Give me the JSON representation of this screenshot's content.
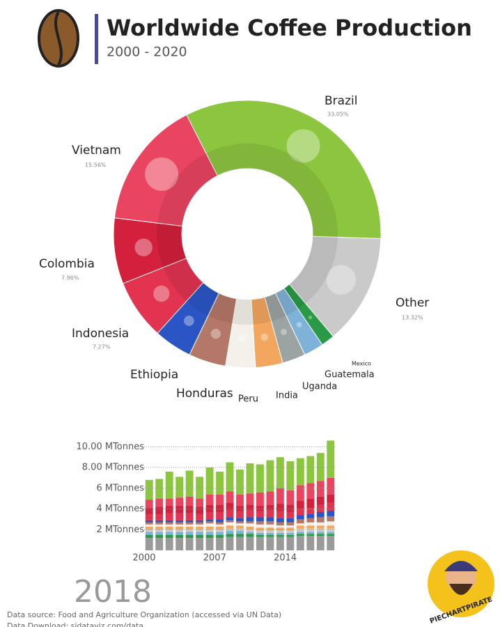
{
  "chart_data": [
    {
      "type": "pie",
      "title": "Worldwide Coffee Production",
      "subtitle": "2000 - 2020",
      "categories": [
        "Brazil",
        "Other",
        "Mexico",
        "Guatemala",
        "Uganda",
        "India",
        "Peru",
        "Honduras",
        "Ethiopia",
        "Indonesia",
        "Colombia",
        "Vietnam"
      ],
      "values": [
        33.05,
        13.32,
        1.64,
        2.4,
        2.8,
        3.3,
        3.6,
        4.5,
        4.6,
        7.27,
        7.96,
        15.56
      ],
      "value_labels": [
        "33.05%",
        "13.32%",
        null,
        null,
        null,
        null,
        null,
        null,
        null,
        "7.27%",
        "7.96%",
        "15.56%"
      ],
      "colors": [
        "#8cc63f",
        "#cacaca",
        "#2a9a46",
        "#7fb2d8",
        "#9ca3a3",
        "#f2a65e",
        "#f3f1ea",
        "#b37868",
        "#2b55c4",
        "#e23450",
        "#d3203c",
        "#ea4560"
      ]
    },
    {
      "type": "bar",
      "stacked": true,
      "annotation": "2018",
      "categories": [
        "2000",
        null,
        null,
        null,
        null,
        null,
        null,
        "2007",
        null,
        null,
        null,
        null,
        null,
        null,
        "2014",
        null,
        null,
        null,
        null
      ],
      "series": [
        {
          "color": "#9a9a9a",
          "values": [
            1.2,
            1.2,
            1.2,
            1.2,
            1.2,
            1.2,
            1.2,
            1.2,
            1.3,
            1.3,
            1.3,
            1.3,
            1.3,
            1.3,
            1.3,
            1.4,
            1.4,
            1.4,
            1.4
          ]
        },
        {
          "color": "#2a9a46",
          "values": [
            0.3,
            0.3,
            0.3,
            0.3,
            0.3,
            0.3,
            0.3,
            0.3,
            0.3,
            0.3,
            0.3,
            0.2,
            0.2,
            0.2,
            0.2,
            0.2,
            0.2,
            0.2,
            0.2
          ]
        },
        {
          "color": "#7fb2d8",
          "values": [
            0.3,
            0.3,
            0.3,
            0.3,
            0.3,
            0.3,
            0.3,
            0.3,
            0.3,
            0.3,
            0.2,
            0.2,
            0.2,
            0.2,
            0.2,
            0.2,
            0.2,
            0.2,
            0.2
          ]
        },
        {
          "color": "#c9cdcd",
          "values": [
            0.2,
            0.2,
            0.2,
            0.2,
            0.2,
            0.2,
            0.2,
            0.2,
            0.2,
            0.2,
            0.2,
            0.2,
            0.2,
            0.2,
            0.2,
            0.3,
            0.3,
            0.3,
            0.3
          ]
        },
        {
          "color": "#f2a65e",
          "values": [
            0.3,
            0.3,
            0.3,
            0.3,
            0.3,
            0.3,
            0.3,
            0.3,
            0.3,
            0.3,
            0.3,
            0.3,
            0.3,
            0.3,
            0.3,
            0.3,
            0.3,
            0.3,
            0.3
          ]
        },
        {
          "color": "#f3f1ea",
          "values": [
            0.2,
            0.2,
            0.2,
            0.2,
            0.2,
            0.2,
            0.3,
            0.2,
            0.3,
            0.2,
            0.3,
            0.3,
            0.3,
            0.2,
            0.2,
            0.2,
            0.3,
            0.3,
            0.4
          ]
        },
        {
          "color": "#b37868",
          "values": [
            0.2,
            0.2,
            0.2,
            0.2,
            0.2,
            0.2,
            0.2,
            0.2,
            0.2,
            0.2,
            0.2,
            0.3,
            0.3,
            0.3,
            0.3,
            0.4,
            0.4,
            0.5,
            0.5
          ]
        },
        {
          "color": "#2b55c4",
          "values": [
            0.2,
            0.2,
            0.2,
            0.2,
            0.2,
            0.2,
            0.2,
            0.3,
            0.3,
            0.3,
            0.4,
            0.4,
            0.4,
            0.4,
            0.4,
            0.4,
            0.4,
            0.5,
            0.5
          ]
        },
        {
          "color": "#e23450",
          "values": [
            0.6,
            0.6,
            0.7,
            0.7,
            0.7,
            0.6,
            0.7,
            0.7,
            0.7,
            0.7,
            0.7,
            0.6,
            0.7,
            0.7,
            0.6,
            0.6,
            0.6,
            0.7,
            0.8
          ]
        },
        {
          "color": "#d3203c",
          "values": [
            0.6,
            0.7,
            0.7,
            0.7,
            0.7,
            0.7,
            0.7,
            0.7,
            0.7,
            0.5,
            0.5,
            0.5,
            0.5,
            0.7,
            0.7,
            0.8,
            0.9,
            0.8,
            0.8
          ]
        },
        {
          "color": "#ea4560",
          "values": [
            0.8,
            0.8,
            0.7,
            0.8,
            0.9,
            0.8,
            1.0,
            1.0,
            1.1,
            1.1,
            1.1,
            1.3,
            1.3,
            1.5,
            1.4,
            1.5,
            1.5,
            1.5,
            1.6
          ]
        },
        {
          "color": "#8cc63f",
          "values": [
            1.9,
            1.9,
            2.6,
            2.0,
            2.5,
            2.1,
            2.6,
            2.2,
            2.8,
            2.4,
            2.9,
            2.7,
            3.0,
            3.0,
            2.8,
            2.6,
            2.6,
            2.7,
            3.6
          ]
        }
      ],
      "ylim": [
        0,
        11.5
      ],
      "yticks": [
        {
          "value": 2,
          "label": "2 MTonnes"
        },
        {
          "value": 4,
          "label": "4 MTonnes"
        },
        {
          "value": 6,
          "label": "6 MTonnes"
        },
        {
          "value": 8,
          "label": "8.00 MTonnes"
        },
        {
          "value": 10,
          "label": "10.00 MTonnes"
        }
      ],
      "grid": true
    }
  ],
  "notes": [
    "Data source: Food and Agriculture Organization (accessed via UN Data)",
    "Data Download: sidataviz.com/data"
  ],
  "brand": "PIECHARTPIRATE"
}
